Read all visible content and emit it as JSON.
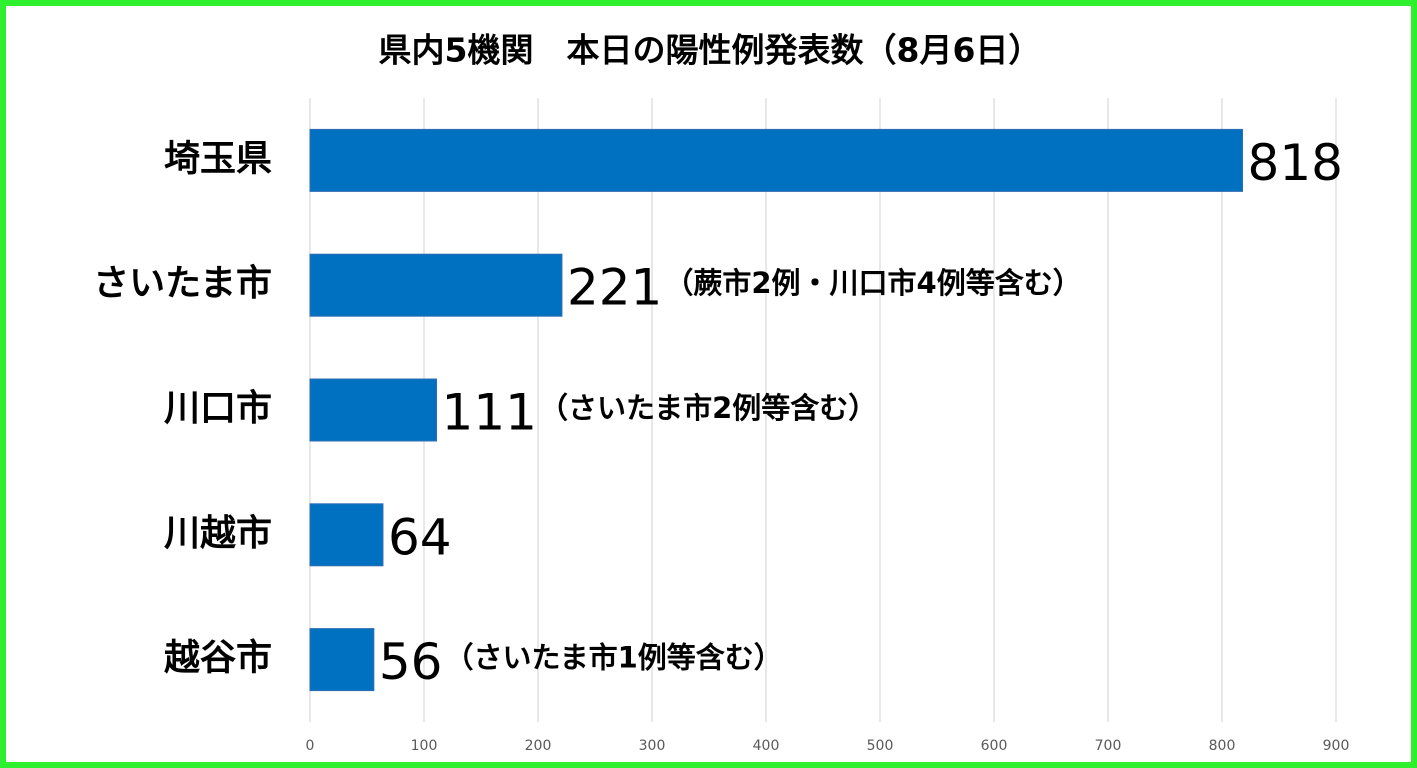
{
  "chart_data": {
    "type": "barh",
    "title": "県内5機関　本日の陽性例発表数（8月6日）",
    "categories": [
      "埼玉県",
      "さいたま市",
      "川口市",
      "川越市",
      "越谷市"
    ],
    "values": [
      818,
      221,
      111,
      64,
      56
    ],
    "annotations": [
      "",
      "（蕨市2例・川口市4例等含む）",
      "（さいたま市2例等含む）",
      null,
      "（さいたま市1例等含む）"
    ],
    "color": "#0070c0",
    "xlim": [
      0,
      900
    ],
    "xticks": [
      0,
      100,
      200,
      300,
      400,
      500,
      600,
      700,
      800,
      900
    ],
    "grid": true
  }
}
